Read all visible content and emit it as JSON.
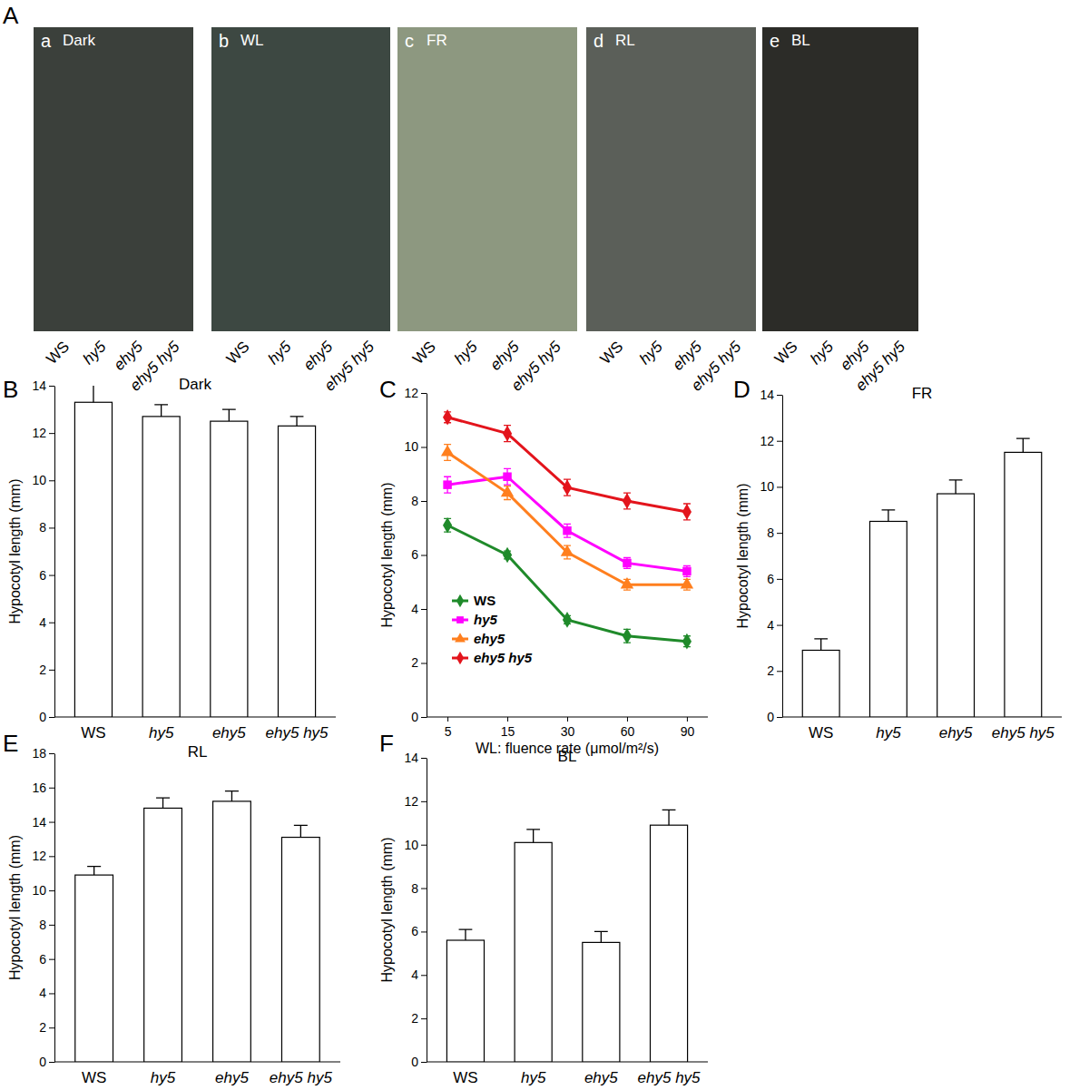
{
  "photo_figure": {
    "label": "A",
    "panels": [
      {
        "letter": "a",
        "condition": "Dark",
        "genotypes": [
          "WS",
          "hy5",
          "ehy5",
          "ehy5 hy5"
        ]
      },
      {
        "letter": "b",
        "condition": "WL",
        "genotypes": [
          "WS",
          "hy5",
          "ehy5",
          "ehy5 hy5"
        ]
      },
      {
        "letter": "c",
        "condition": "FR",
        "genotypes": [
          "WS",
          "hy5",
          "ehy5",
          "ehy5 hy5"
        ]
      },
      {
        "letter": "d",
        "condition": "RL",
        "genotypes": [
          "WS",
          "hy5",
          "ehy5",
          "ehy5 hy5"
        ]
      },
      {
        "letter": "e",
        "condition": "BL",
        "genotypes": [
          "WS",
          "hy5",
          "ehy5",
          "ehy5 hy5"
        ]
      }
    ]
  },
  "chart_data": [
    {
      "type": "bar",
      "panel_label": "B",
      "title": "Dark",
      "ylabel": "Hypocotyl length (mm)",
      "categories": [
        "WS",
        "hy5",
        "ehy5",
        "ehy5 hy5"
      ],
      "values": [
        13.3,
        12.7,
        12.5,
        12.3
      ],
      "errors": [
        0.8,
        0.5,
        0.5,
        0.4
      ],
      "color": "#ffffff",
      "ylim": [
        0,
        14
      ],
      "yticks": [
        0,
        2,
        4,
        6,
        8,
        10,
        12,
        14
      ]
    },
    {
      "type": "line",
      "panel_label": "C",
      "ylabel": "Hypocotyl length (mm)",
      "xlabel": "WL: fluence rate (μmol/m²/s)",
      "categories": [
        "5",
        "15",
        "30",
        "60",
        "90"
      ],
      "legend": "lower left",
      "ylim": [
        0,
        12
      ],
      "yticks": [
        0,
        2,
        4,
        6,
        8,
        10,
        12
      ],
      "series": [
        {
          "name": "WS",
          "color": "#1f8a2a",
          "marker": "diamond",
          "values": [
            7.1,
            6.0,
            3.6,
            3.0,
            2.8
          ],
          "errors": [
            0.25,
            0.15,
            0.15,
            0.25,
            0.2
          ]
        },
        {
          "name": "hy5",
          "color": "#ff00ff",
          "marker": "square",
          "values": [
            8.6,
            8.9,
            6.9,
            5.7,
            5.4
          ],
          "errors": [
            0.3,
            0.3,
            0.25,
            0.2,
            0.2
          ]
        },
        {
          "name": "ehy5",
          "color": "#ff7f1e",
          "marker": "triangle",
          "values": [
            9.8,
            8.3,
            6.1,
            4.9,
            4.9
          ],
          "errors": [
            0.3,
            0.25,
            0.25,
            0.2,
            0.2
          ]
        },
        {
          "name": "ehy5 hy5",
          "color": "#e3141c",
          "marker": "diamond",
          "values": [
            11.1,
            10.5,
            8.5,
            8.0,
            7.6
          ],
          "errors": [
            0.2,
            0.3,
            0.3,
            0.3,
            0.3
          ]
        }
      ]
    },
    {
      "type": "bar",
      "panel_label": "D",
      "title": "FR",
      "ylabel": "Hypocotyl length (mm)",
      "categories": [
        "WS",
        "hy5",
        "ehy5",
        "ehy5 hy5"
      ],
      "values": [
        2.9,
        8.5,
        9.7,
        11.5
      ],
      "errors": [
        0.5,
        0.5,
        0.6,
        0.6
      ],
      "color": "#ffffff",
      "ylim": [
        0,
        14
      ],
      "yticks": [
        0,
        2,
        4,
        6,
        8,
        10,
        12,
        14
      ]
    },
    {
      "type": "bar",
      "panel_label": "E",
      "title": "RL",
      "ylabel": "Hypocotyl length (mm)",
      "categories": [
        "WS",
        "hy5",
        "ehy5",
        "ehy5 hy5"
      ],
      "values": [
        10.9,
        14.8,
        15.2,
        13.1
      ],
      "errors": [
        0.5,
        0.6,
        0.6,
        0.7
      ],
      "color": "#ffffff",
      "ylim": [
        0,
        18
      ],
      "yticks": [
        0,
        2,
        4,
        6,
        8,
        10,
        12,
        14,
        16,
        18
      ]
    },
    {
      "type": "bar",
      "panel_label": "F",
      "title": "BL",
      "ylabel": "Hypocotyl length (mm)",
      "categories": [
        "WS",
        "hy5",
        "ehy5",
        "ehy5 hy5"
      ],
      "values": [
        5.6,
        10.1,
        5.5,
        10.9
      ],
      "errors": [
        0.5,
        0.6,
        0.5,
        0.7
      ],
      "color": "#ffffff",
      "ylim": [
        0,
        14
      ],
      "yticks": [
        0,
        2,
        4,
        6,
        8,
        10,
        12,
        14
      ]
    }
  ]
}
